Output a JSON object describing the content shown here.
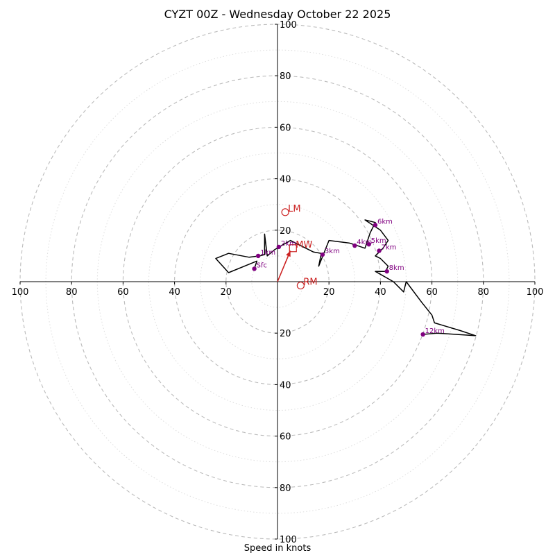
{
  "chart_data": {
    "type": "hodograph",
    "title": "CYZT 00Z - Wednesday October 22 2025",
    "xlabel": "Speed in knots",
    "range": 100,
    "ring_major_step": 20,
    "ring_minor_step": 10,
    "ticks": [
      100,
      80,
      60,
      40,
      20,
      0,
      20,
      40,
      60,
      80,
      100
    ],
    "colors": {
      "trace": "#000000",
      "height_marker": "#800080",
      "motion": "#cc2222",
      "major_ring": "#bbbbbb",
      "minor_ring": "#dddddd"
    },
    "trace": [
      [
        -9,
        5
      ],
      [
        -8,
        8
      ],
      [
        -19,
        3.5
      ],
      [
        -24,
        9
      ],
      [
        -19,
        11
      ],
      [
        -11,
        9.5
      ],
      [
        -7,
        10
      ],
      [
        -5,
        10.5
      ],
      [
        -5,
        18.5
      ],
      [
        -4,
        10
      ],
      [
        -1,
        12.5
      ],
      [
        5,
        16
      ],
      [
        8,
        14.5
      ],
      [
        14,
        11.5
      ],
      [
        17,
        11
      ],
      [
        16,
        6
      ],
      [
        20,
        16
      ],
      [
        28,
        15
      ],
      [
        31,
        14
      ],
      [
        34,
        13
      ],
      [
        36,
        19
      ],
      [
        38,
        23
      ],
      [
        34,
        24
      ],
      [
        40,
        20
      ],
      [
        43,
        16
      ],
      [
        41,
        13
      ],
      [
        39,
        11
      ],
      [
        38,
        10
      ],
      [
        40,
        9
      ],
      [
        43,
        6
      ],
      [
        42,
        4
      ],
      [
        38,
        4
      ],
      [
        45,
        0
      ],
      [
        49,
        -4
      ],
      [
        50,
        0
      ],
      [
        56,
        -8
      ],
      [
        60,
        -13
      ],
      [
        61,
        -16
      ],
      [
        71,
        -19
      ],
      [
        77,
        -21
      ],
      [
        62,
        -20
      ],
      [
        56,
        -20.5
      ]
    ],
    "height_markers": [
      {
        "label": "Sfc",
        "u": -9,
        "v": 5
      },
      {
        "label": "1km",
        "u": -7.5,
        "v": 10
      },
      {
        "label": "2km",
        "u": 0.5,
        "v": 13.5
      },
      {
        "label": "3km",
        "u": 17.5,
        "v": 10.5
      },
      {
        "label": "4km",
        "u": 30,
        "v": 14
      },
      {
        "label": "5km",
        "u": 35.5,
        "v": 14.5
      },
      {
        "label": "6km",
        "u": 38,
        "v": 22
      },
      {
        "label": "7km",
        "u": 39.5,
        "v": 12
      },
      {
        "label": "8km",
        "u": 42.5,
        "v": 4
      },
      {
        "label": "12km",
        "u": 56.5,
        "v": -20.5
      }
    ],
    "storm_motion": [
      {
        "label": "LM",
        "u": 3,
        "v": 27,
        "symbol": "circle"
      },
      {
        "label": "MW",
        "u": 6,
        "v": 13,
        "symbol": "square"
      },
      {
        "label": "RM",
        "u": 9,
        "v": -1.5,
        "symbol": "circle"
      }
    ],
    "motion_vector": {
      "u": 5,
      "v": 12
    }
  }
}
